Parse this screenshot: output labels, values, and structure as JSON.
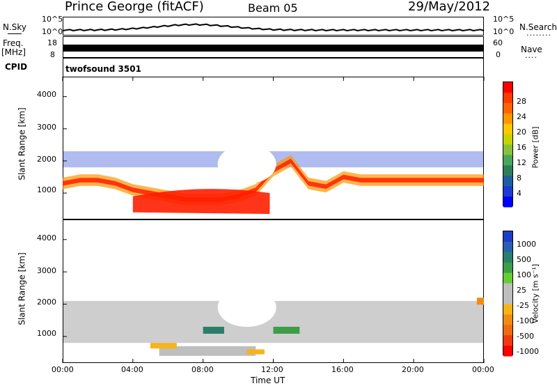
{
  "header": {
    "station": "Prince George (fitACF)",
    "beam": "Beam 05",
    "date": "29/May/2012"
  },
  "left_labels": {
    "nsky": "N.Sky",
    "freq": "Freq.",
    "freq_unit": "[MHz]",
    "cpid": "CPID"
  },
  "right_labels": {
    "nsearch": "N.Search",
    "nsearch_dots": "........",
    "nave": "Nave",
    "nave_dots": "...."
  },
  "noise_axis": {
    "top": "10^5",
    "bottom": "10^0",
    "right_top": "10^5",
    "right_bottom": "10^0"
  },
  "freq_axis": {
    "top": "18",
    "bottom": "8",
    "right_top": "60",
    "right_bottom": "0"
  },
  "cpid_text": "twofsound 3501",
  "power_colorbar": {
    "label": "Power [dB]",
    "ticks": [
      "28",
      "24",
      "20",
      "16",
      "12",
      "8",
      "4"
    ],
    "colors": [
      "#ff0000",
      "#ff3a00",
      "#ff6400",
      "#ff9500",
      "#ffc800",
      "#c8d200",
      "#88c23a",
      "#4aa65a",
      "#2e7d5a",
      "#1d5fa0",
      "#1c3cd0",
      "#0000ff"
    ]
  },
  "velocity_colorbar": {
    "label": "Velocity [m s⁻¹]",
    "ticks": [
      "1000",
      "500",
      "100",
      "25",
      "-25",
      "-100",
      "-500",
      "-1000"
    ],
    "colors": [
      "#1c3cc8",
      "#2860b0",
      "#2a7f6a",
      "#3c9e46",
      "#66cc33",
      "#bebebe",
      "#bebebe",
      "#f7b417",
      "#f08c12",
      "#ef6a10",
      "#f03a10",
      "#ff0000"
    ]
  },
  "axes": {
    "ylabel": "Slant Range [km]",
    "xlabel": "Time UT",
    "yticks": [
      "4000",
      "3000",
      "2000",
      "1000"
    ],
    "xticks": [
      "00:00",
      "04:00",
      "08:00",
      "12:00",
      "16:00",
      "20:00",
      "00:00"
    ]
  },
  "chart_data": {
    "type": "heatmap",
    "title": "Prince George (fitACF) Beam 05 29/May/2012",
    "xlabel": "Time UT",
    "ylabel": "Slant Range [km]",
    "xlim_hours": [
      0,
      24
    ],
    "ylim_km": [
      200,
      4600
    ],
    "panels": [
      {
        "name": "Power",
        "units": "dB",
        "colorbar_range": [
          0,
          30
        ],
        "features": [
          {
            "desc": "main band",
            "t_hours": [
              0,
              1,
              2,
              3,
              4,
              5,
              6,
              7,
              8,
              9,
              10,
              11,
              12,
              13,
              14,
              15,
              16,
              17,
              18,
              19,
              20,
              21,
              22,
              23,
              24
            ],
            "range_km": [
              1300,
              1400,
              1400,
              1300,
              1100,
              1000,
              900,
              800,
              800,
              800,
              900,
              1100,
              1700,
              2000,
              1300,
              1200,
              1500,
              1400,
              1400,
              1400,
              1400,
              1400,
              1400,
              1400,
              1400
            ],
            "power_db": 26
          },
          {
            "desc": "near range strong echoes",
            "t_hours": [
              4,
              12
            ],
            "range_km": [
              400,
              800
            ],
            "power_db": 30
          },
          {
            "desc": "far band",
            "t_hours": [
              0,
              24
            ],
            "range_km": [
              1800,
              2300
            ],
            "power_db": 8
          }
        ]
      },
      {
        "name": "Velocity",
        "units": "m s-1",
        "colorbar_range": [
          -1000,
          1000
        ],
        "features": [
          {
            "desc": "ground scatter band",
            "t_hours": [
              0,
              24
            ],
            "range_km": [
              900,
              2000
            ],
            "velocity": 0
          },
          {
            "desc": "near range echoes",
            "t_hours": [
              5,
              11
            ],
            "range_km": [
              400,
              800
            ],
            "velocity": -100
          },
          {
            "desc": "positive velocity patch",
            "t_hours": [
              8,
              9
            ],
            "range_km": [
              1100,
              1300
            ],
            "velocity": 300
          }
        ]
      }
    ]
  }
}
